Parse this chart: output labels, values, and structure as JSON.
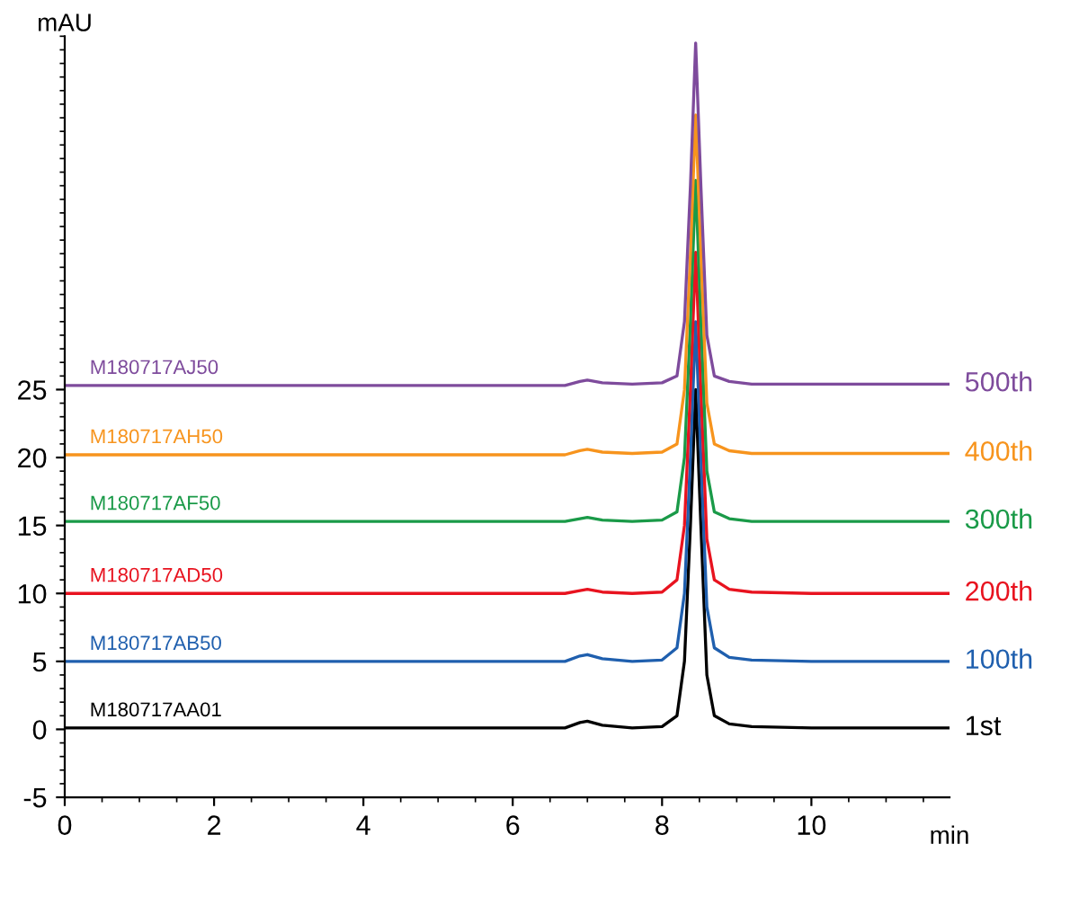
{
  "chart_data": {
    "type": "line",
    "ylabel": "mAU",
    "xlabel": "min",
    "xlim": [
      0,
      11.85
    ],
    "xticks": [
      0,
      2,
      4,
      6,
      8,
      10
    ],
    "ylim": [
      -5,
      51
    ],
    "yticks": [
      -5,
      0,
      5,
      10,
      15,
      20,
      25
    ],
    "x": [
      0,
      6.7,
      6.9,
      7.0,
      7.2,
      7.6,
      8.0,
      8.2,
      8.3,
      8.38,
      8.45,
      8.52,
      8.6,
      8.7,
      8.9,
      9.2,
      10,
      11.85
    ],
    "series": [
      {
        "name": "1st",
        "color": "#000000",
        "values": [
          0.1,
          0.1,
          0.5,
          0.6,
          0.3,
          0.1,
          0.2,
          1,
          5,
          15,
          25,
          15,
          4,
          1,
          0.4,
          0.2,
          0.1,
          0.1
        ]
      },
      {
        "name": "100th",
        "color": "#1f5fae",
        "values": [
          5.0,
          5.0,
          5.4,
          5.5,
          5.2,
          5.0,
          5.1,
          6,
          10,
          20,
          30,
          20,
          9,
          6,
          5.3,
          5.1,
          5.0,
          5.0
        ]
      },
      {
        "name": "200th",
        "color": "#e8131f",
        "values": [
          10.0,
          10.0,
          10.2,
          10.3,
          10.1,
          10.0,
          10.1,
          11,
          15,
          25,
          35.1,
          25,
          14,
          11,
          10.3,
          10.1,
          10.0,
          10.0
        ]
      },
      {
        "name": "300th",
        "color": "#1a9a48",
        "values": [
          15.3,
          15.3,
          15.5,
          15.6,
          15.4,
          15.3,
          15.4,
          16,
          20,
          30,
          40.4,
          30,
          19,
          16,
          15.5,
          15.3,
          15.3,
          15.3
        ]
      },
      {
        "name": "400th",
        "color": "#f7941d",
        "values": [
          20.2,
          20.2,
          20.5,
          20.6,
          20.4,
          20.3,
          20.4,
          21,
          25,
          35,
          45.2,
          35,
          24,
          21,
          20.5,
          20.3,
          20.3,
          20.3
        ]
      },
      {
        "name": "500th",
        "color": "#7e4b9c",
        "values": [
          25.3,
          25.3,
          25.6,
          25.7,
          25.5,
          25.4,
          25.5,
          26,
          30,
          40,
          50.5,
          40,
          29,
          26,
          25.6,
          25.4,
          25.4,
          25.4
        ]
      }
    ],
    "annotations": [
      "M180717AA01",
      "M180717AB50",
      "M180717AD50",
      "M180717AF50",
      "M180717AH50",
      "M180717AJ50"
    ],
    "legend": false,
    "grid": false
  }
}
